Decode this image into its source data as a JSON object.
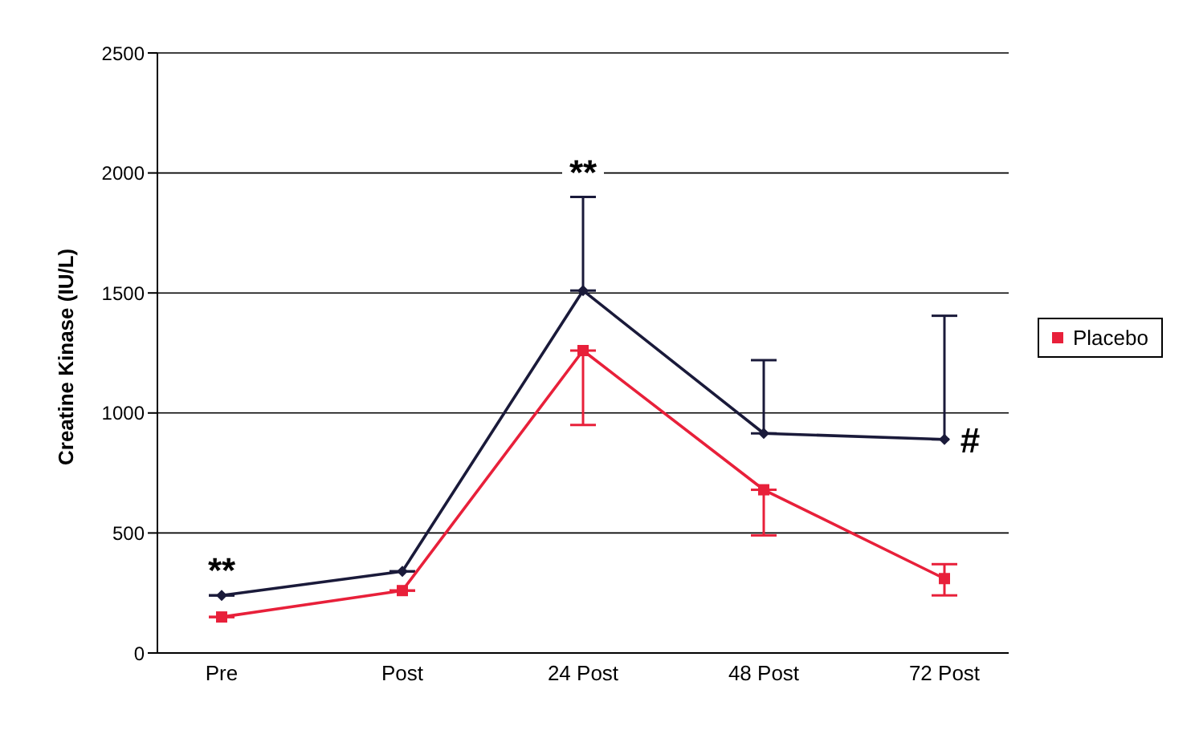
{
  "chart_data": {
    "type": "line",
    "ylabel": "Creatine Kinase (IU/L)",
    "categories": [
      "Pre",
      "Post",
      "24 Post",
      "48 Post",
      "72 Post"
    ],
    "series": [
      {
        "color": "#1a1a3a",
        "marker": "diamond",
        "values": [
          240,
          340,
          1510,
          915,
          890
        ],
        "errors": [
          null,
          null,
          [
            1510,
            1900
          ],
          [
            915,
            1220
          ],
          [
            890,
            1405
          ]
        ]
      },
      {
        "name": "Placebo",
        "color": "#e8203a",
        "marker": "square",
        "values": [
          150,
          260,
          1260,
          680,
          310
        ],
        "errors": [
          null,
          null,
          [
            950,
            1260
          ],
          [
            490,
            680
          ],
          [
            240,
            370
          ]
        ]
      }
    ],
    "ylim": [
      0,
      2500
    ],
    "yticks": [
      0,
      500,
      1000,
      1500,
      2000,
      2500
    ],
    "grid": "y",
    "legend": "right",
    "annotations": [
      {
        "text": "**",
        "x": "Pre",
        "y": 240
      },
      {
        "text": "**",
        "x": "24 Post",
        "y": 1900
      },
      {
        "text": "#",
        "x": "72 Post",
        "y": 890
      }
    ]
  }
}
